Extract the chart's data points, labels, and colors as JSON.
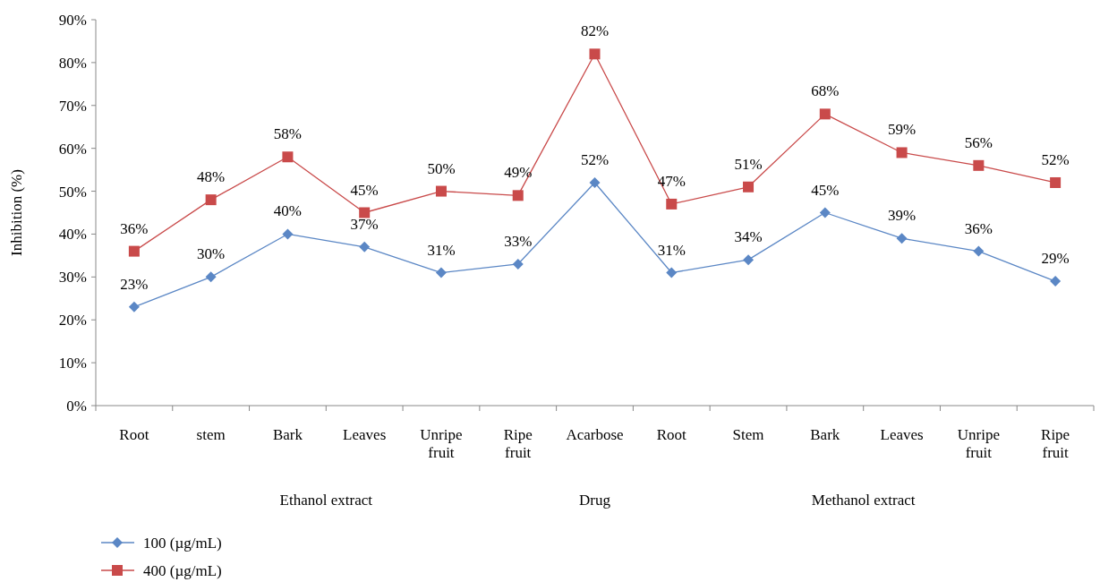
{
  "chart_data": {
    "type": "line",
    "ylabel": "Inhibition (%)",
    "categories": [
      "Root",
      "stem",
      "Bark",
      "Leaves",
      "Unripe fruit",
      "Ripe fruit",
      "Acarbose",
      "Root",
      "Stem",
      "Bark",
      "Leaves",
      "Unripe fruit",
      "Ripe fruit"
    ],
    "series": [
      {
        "name": "100 (µg/mL)",
        "color": "#5b87c5",
        "marker": "diamond",
        "values": [
          23,
          30,
          40,
          37,
          31,
          33,
          52,
          31,
          34,
          45,
          39,
          36,
          29
        ],
        "value_labels": [
          "23%",
          "30%",
          "40%",
          "37%",
          "31%",
          "33%",
          "52%",
          "31%",
          "34%",
          "45%",
          "39%",
          "36%",
          "29%"
        ]
      },
      {
        "name": "400 (µg/mL)",
        "color": "#c94a4a",
        "marker": "square",
        "values": [
          36,
          48,
          58,
          45,
          50,
          49,
          82,
          47,
          51,
          68,
          59,
          56,
          52
        ],
        "value_labels": [
          "36%",
          "48%",
          "58%",
          "45%",
          "50%",
          "49%",
          "82%",
          "47%",
          "51%",
          "68%",
          "59%",
          "56%",
          "52%"
        ]
      }
    ],
    "ylim": [
      0,
      90
    ],
    "yticks": [
      {
        "value": 0,
        "label": "0%"
      },
      {
        "value": 10,
        "label": "10%"
      },
      {
        "value": 20,
        "label": "20%"
      },
      {
        "value": 30,
        "label": "30%"
      },
      {
        "value": 40,
        "label": "40%"
      },
      {
        "value": 50,
        "label": "50%"
      },
      {
        "value": 60,
        "label": "60%"
      },
      {
        "value": 70,
        "label": "70%"
      },
      {
        "value": 80,
        "label": "80%"
      },
      {
        "value": 90,
        "label": "90%"
      }
    ],
    "grid": false,
    "legend": "bottom left",
    "annotations": [
      "Ethanol extract",
      "Drug",
      "Methanol extract"
    ]
  }
}
